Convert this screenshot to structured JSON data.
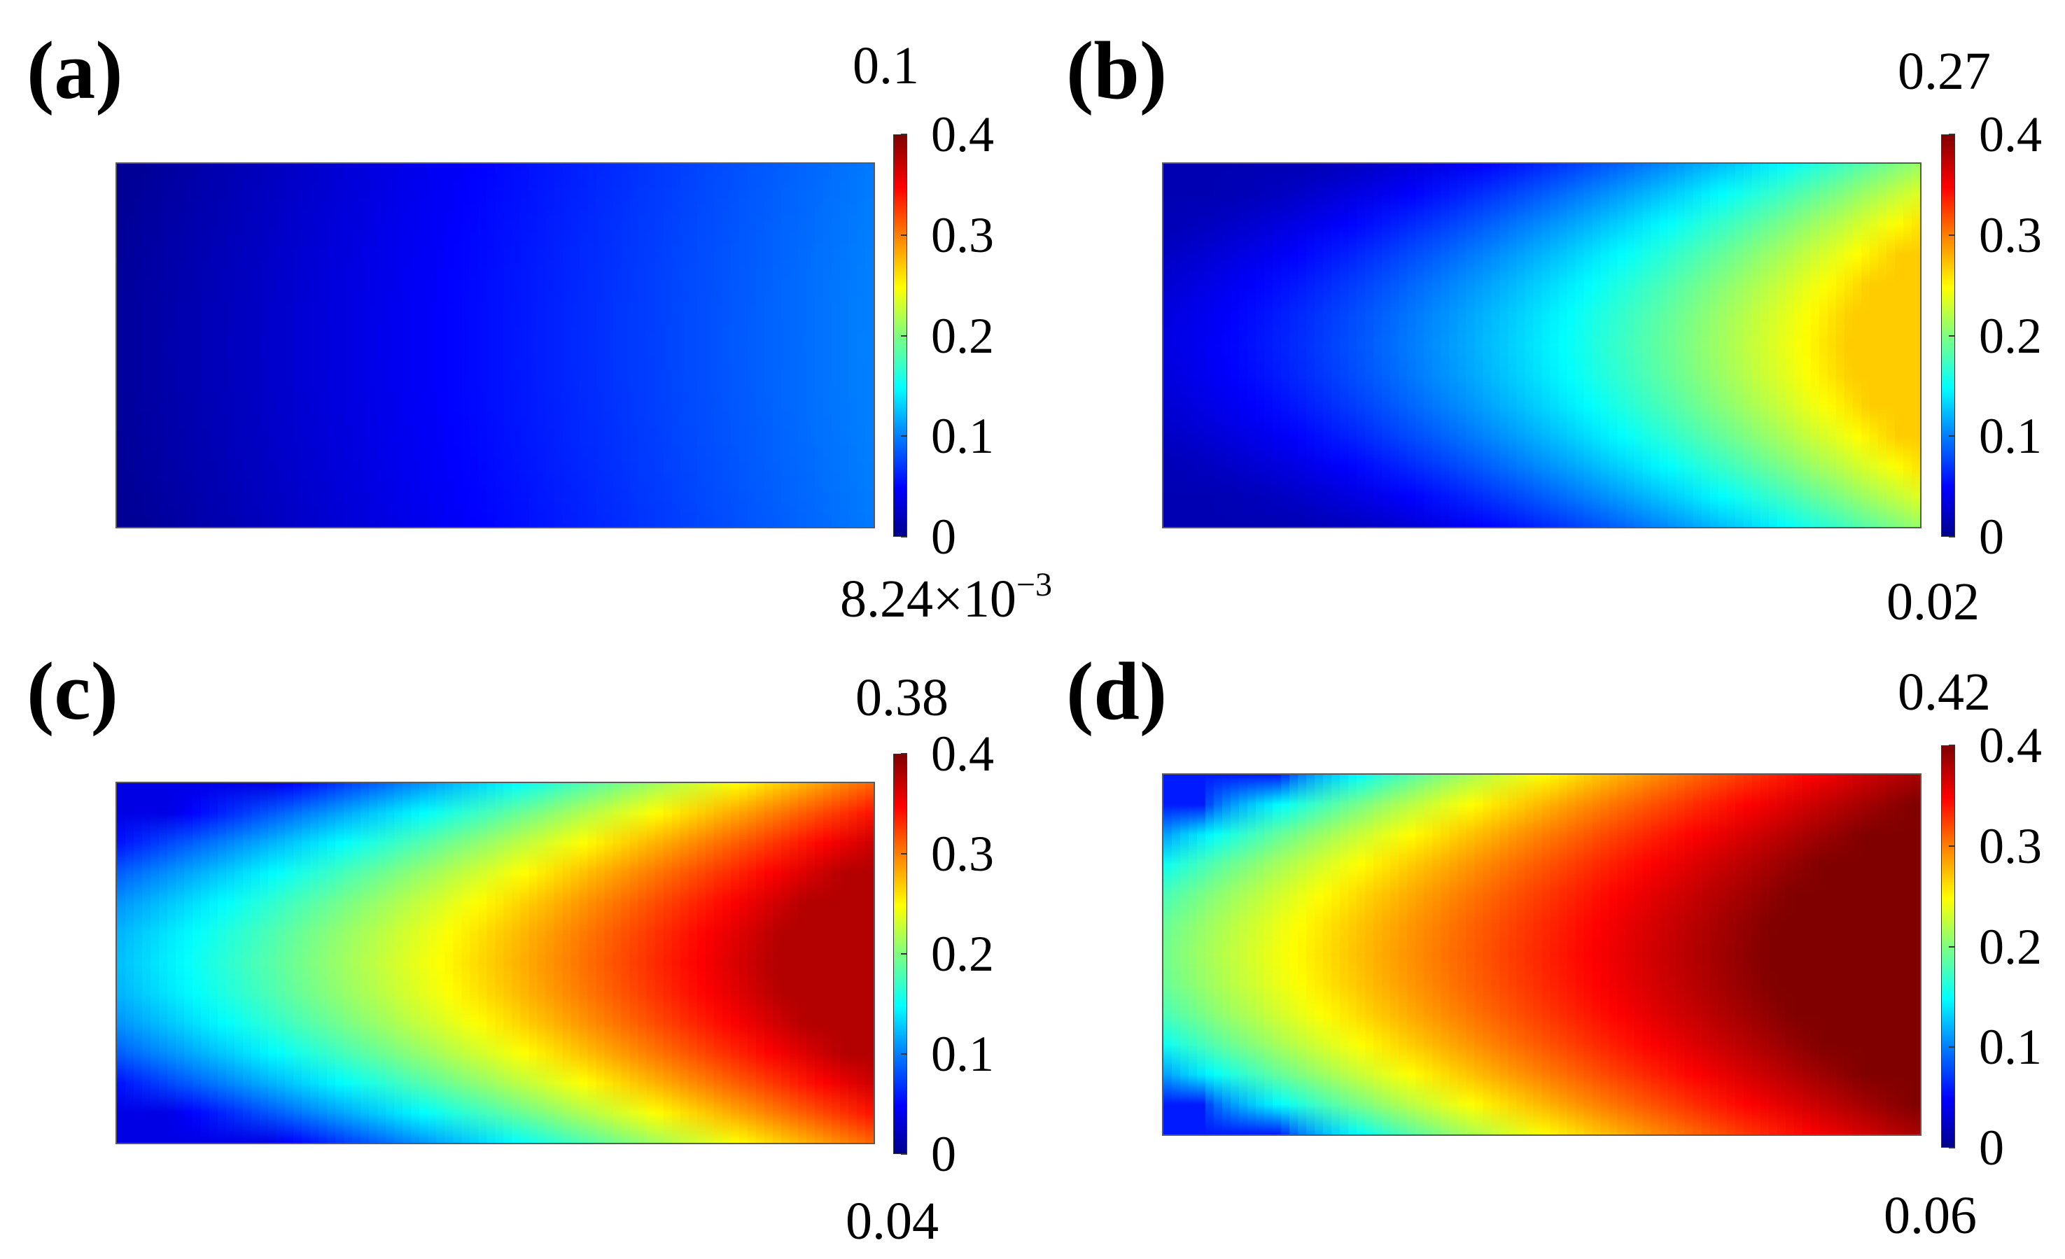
{
  "chart_data": [
    {
      "type": "heatmap",
      "panel_label": "(a)",
      "colorbar": {
        "ticks": [
          "0",
          "0.1",
          "0.2",
          "0.3",
          "0.4"
        ],
        "range": [
          0,
          0.4
        ]
      },
      "max_label": "0.1",
      "min_label": {
        "mantissa": "8.24×10",
        "exponent": "−3"
      },
      "field_min": 0.00824,
      "field_max": 0.1
    },
    {
      "type": "heatmap",
      "panel_label": "(b)",
      "colorbar": {
        "ticks": [
          "0",
          "0.1",
          "0.2",
          "0.3",
          "0.4"
        ],
        "range": [
          0,
          0.4
        ]
      },
      "max_label": "0.27",
      "min_label": "0.02",
      "field_min": 0.02,
      "field_max": 0.27
    },
    {
      "type": "heatmap",
      "panel_label": "(c)",
      "colorbar": {
        "ticks": [
          "0",
          "0.1",
          "0.2",
          "0.3",
          "0.4"
        ],
        "range": [
          0,
          0.4
        ]
      },
      "max_label": "0.38",
      "min_label": "0.04",
      "field_min": 0.04,
      "field_max": 0.38
    },
    {
      "type": "heatmap",
      "panel_label": "(d)",
      "colorbar": {
        "ticks": [
          "0",
          "0.1",
          "0.2",
          "0.3",
          "0.4"
        ],
        "range": [
          0,
          0.4
        ]
      },
      "max_label": "0.42",
      "min_label": "0.06",
      "field_min": 0.06,
      "field_max": 0.42
    }
  ]
}
